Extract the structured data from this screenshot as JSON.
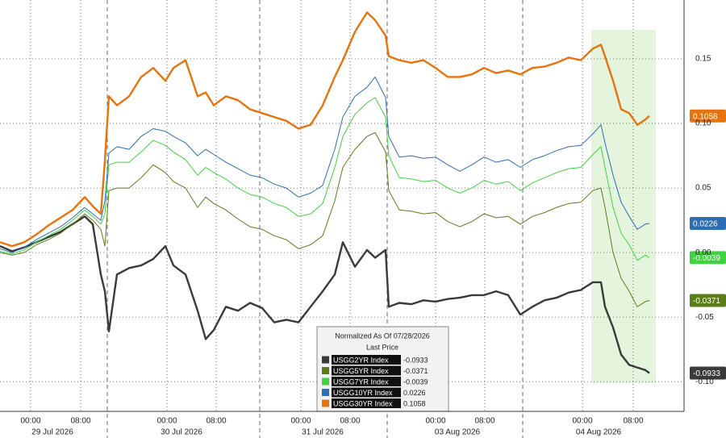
{
  "chart_data": {
    "type": "line",
    "x": [
      0,
      15,
      30,
      45,
      60,
      75,
      90,
      105,
      115,
      125,
      130,
      135,
      145,
      160,
      175,
      190,
      205,
      215,
      230,
      245,
      255,
      265,
      280,
      295,
      310,
      325,
      340,
      355,
      370,
      385,
      400,
      415,
      425,
      440,
      455,
      465,
      478,
      482,
      495,
      510,
      525,
      540,
      555,
      570,
      585,
      600,
      615,
      630,
      645,
      660,
      675,
      690,
      705,
      720,
      735,
      745,
      750,
      760,
      770,
      780,
      790,
      800,
      805
    ],
    "xlim": [
      0,
      848
    ],
    "xticks": [
      {
        "value": 38,
        "label": "00:00"
      },
      {
        "value": 100,
        "label": "08:00"
      },
      {
        "value": 207,
        "label": "00:00"
      },
      {
        "value": 268,
        "label": "08:00"
      },
      {
        "value": 373,
        "label": "00:00"
      },
      {
        "value": 434,
        "label": "08:00"
      },
      {
        "value": 540,
        "label": "00:00"
      },
      {
        "value": 601,
        "label": "08:00"
      },
      {
        "value": 722,
        "label": "00:00"
      },
      {
        "value": 785,
        "label": "08:00"
      }
    ],
    "xdates": [
      {
        "value": 65,
        "label": "29 Jul 2026"
      },
      {
        "value": 225,
        "label": "30 Jul 2026"
      },
      {
        "value": 400,
        "label": "31 Jul 2026"
      },
      {
        "value": 567,
        "label": "03 Aug 2026"
      },
      {
        "value": 742,
        "label": "04 Aug 2026"
      }
    ],
    "xbreaks": [
      133,
      322,
      480,
      648
    ],
    "ylim": [
      -0.123,
      0.1925
    ],
    "yticks": [
      {
        "value": -0.1,
        "label": "-0.10"
      },
      -0.05,
      {
        "value": 0,
        "label": "0.00"
      },
      0.05,
      {
        "value": 0.1,
        "label": "0.10"
      },
      0.15
    ],
    "grid": true,
    "legend_title": "Normalized As Of 07/28/2026",
    "legend_subtitle": "Last Price",
    "series": [
      {
        "name": "USGG2YR Index",
        "color": "#3a3a3a",
        "values": [
          0.005,
          0.001,
          0.004,
          0.008,
          0.012,
          0.016,
          0.022,
          0.028,
          0.022,
          -0.017,
          -0.03,
          -0.061,
          -0.017,
          -0.012,
          -0.01,
          -0.005,
          0.005,
          -0.01,
          -0.017,
          -0.045,
          -0.067,
          -0.06,
          -0.042,
          -0.045,
          -0.039,
          -0.043,
          -0.054,
          -0.052,
          -0.054,
          -0.042,
          -0.03,
          -0.017,
          0.008,
          -0.011,
          0.002,
          -0.004,
          0.002,
          -0.042,
          -0.039,
          -0.04,
          -0.037,
          -0.038,
          -0.036,
          -0.035,
          -0.033,
          -0.033,
          -0.03,
          -0.033,
          -0.048,
          -0.042,
          -0.037,
          -0.035,
          -0.031,
          -0.029,
          -0.023,
          -0.023,
          -0.042,
          -0.058,
          -0.079,
          -0.087,
          -0.089,
          -0.091,
          -0.0933
        ]
      },
      {
        "name": "USGG5YR Index",
        "color": "#5a7d1a",
        "values": [
          0.0,
          -0.002,
          0.0,
          0.006,
          0.01,
          0.015,
          0.022,
          0.03,
          0.025,
          0.018,
          0.005,
          0.048,
          0.05,
          0.05,
          0.058,
          0.068,
          0.062,
          0.055,
          0.05,
          0.035,
          0.043,
          0.038,
          0.033,
          0.026,
          0.02,
          0.018,
          0.013,
          0.01,
          0.003,
          0.006,
          0.013,
          0.04,
          0.066,
          0.08,
          0.09,
          0.093,
          0.078,
          0.048,
          0.033,
          0.032,
          0.03,
          0.031,
          0.024,
          0.02,
          0.024,
          0.03,
          0.027,
          0.028,
          0.022,
          0.028,
          0.031,
          0.035,
          0.038,
          0.039,
          0.048,
          0.05,
          0.035,
          0.0,
          -0.02,
          -0.03,
          -0.042,
          -0.038,
          -0.0371
        ]
      },
      {
        "name": "USGG7YR Index",
        "color": "#3fd33f",
        "values": [
          0.001,
          -0.001,
          0.002,
          0.008,
          0.013,
          0.018,
          0.025,
          0.033,
          0.028,
          0.022,
          0.03,
          0.068,
          0.07,
          0.07,
          0.078,
          0.087,
          0.083,
          0.078,
          0.072,
          0.06,
          0.066,
          0.062,
          0.057,
          0.05,
          0.045,
          0.043,
          0.038,
          0.035,
          0.028,
          0.03,
          0.038,
          0.066,
          0.09,
          0.107,
          0.116,
          0.12,
          0.105,
          0.075,
          0.058,
          0.057,
          0.055,
          0.056,
          0.05,
          0.046,
          0.05,
          0.056,
          0.053,
          0.055,
          0.048,
          0.054,
          0.058,
          0.062,
          0.065,
          0.066,
          0.076,
          0.082,
          0.066,
          0.035,
          0.015,
          0.006,
          -0.006,
          -0.002,
          -0.0039
        ]
      },
      {
        "name": "USGG10YR Index",
        "color": "#2d6db4",
        "values": [
          0.003,
          0.0,
          0.004,
          0.01,
          0.015,
          0.02,
          0.027,
          0.035,
          0.03,
          0.025,
          0.04,
          0.077,
          0.082,
          0.08,
          0.09,
          0.096,
          0.094,
          0.09,
          0.085,
          0.075,
          0.08,
          0.076,
          0.07,
          0.065,
          0.06,
          0.058,
          0.053,
          0.05,
          0.043,
          0.046,
          0.052,
          0.08,
          0.105,
          0.121,
          0.128,
          0.136,
          0.12,
          0.09,
          0.074,
          0.075,
          0.073,
          0.074,
          0.068,
          0.063,
          0.068,
          0.074,
          0.07,
          0.072,
          0.066,
          0.072,
          0.075,
          0.079,
          0.082,
          0.083,
          0.092,
          0.099,
          0.085,
          0.06,
          0.039,
          0.028,
          0.018,
          0.022,
          0.0226
        ]
      },
      {
        "name": "USGG30YR Index",
        "color": "#e8730c",
        "values": [
          0.008,
          0.005,
          0.008,
          0.014,
          0.021,
          0.027,
          0.033,
          0.043,
          0.036,
          0.03,
          0.071,
          0.121,
          0.114,
          0.121,
          0.136,
          0.143,
          0.133,
          0.143,
          0.149,
          0.121,
          0.124,
          0.114,
          0.121,
          0.118,
          0.111,
          0.108,
          0.105,
          0.102,
          0.096,
          0.099,
          0.114,
          0.136,
          0.149,
          0.171,
          0.186,
          0.18,
          0.168,
          0.152,
          0.149,
          0.147,
          0.149,
          0.143,
          0.136,
          0.136,
          0.138,
          0.143,
          0.139,
          0.141,
          0.138,
          0.143,
          0.144,
          0.147,
          0.151,
          0.149,
          0.158,
          0.161,
          0.152,
          0.133,
          0.111,
          0.108,
          0.099,
          0.103,
          0.1058
        ]
      }
    ]
  }
}
